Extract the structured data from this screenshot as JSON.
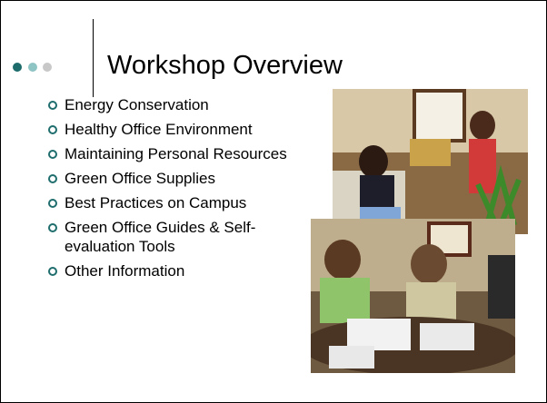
{
  "slide": {
    "title": "Workshop Overview",
    "bullets": [
      "Energy Conservation",
      "Healthy Office Environment",
      "Maintaining Personal Resources",
      "Green Office Supplies",
      "Best Practices on Campus",
      "Green Office Guides & Self-evaluation Tools",
      "Other Information"
    ]
  }
}
